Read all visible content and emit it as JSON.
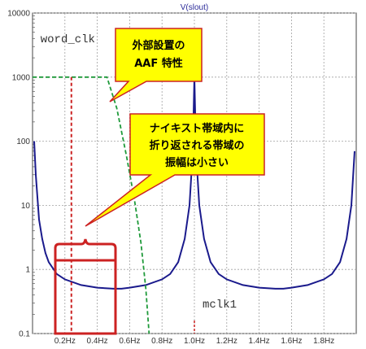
{
  "chart_data": {
    "type": "line",
    "title": "V(slout)",
    "x_scale": "linear",
    "y_scale": "log",
    "xlim": [
      0,
      2.0
    ],
    "ylim": [
      0.1,
      10000
    ],
    "x_ticks": [
      0.2,
      0.4,
      0.6,
      0.8,
      1.0,
      1.2,
      1.4,
      1.6,
      1.8
    ],
    "x_tick_labels": [
      "0.2Hz",
      "0.4Hz",
      "0.6Hz",
      "0.8Hz",
      "1.0Hz",
      "1.2Hz",
      "1.4Hz",
      "1.6Hz",
      "1.8Hz"
    ],
    "y_ticks": [
      0.1,
      1,
      10,
      100,
      1000,
      10000
    ],
    "y_tick_labels": [
      "0.1",
      "1",
      "10",
      "100",
      "1000",
      "10000"
    ],
    "grid": true,
    "series": [
      {
        "color": "#1a1a8c",
        "style": "solid",
        "x": [
          0.01,
          0.02,
          0.04,
          0.06,
          0.08,
          0.1,
          0.15,
          0.2,
          0.3,
          0.4,
          0.5,
          0.55,
          0.6,
          0.7,
          0.8,
          0.85,
          0.9,
          0.94,
          0.97,
          0.99,
          1.0,
          1.01,
          1.03,
          1.06,
          1.1,
          1.15,
          1.2,
          1.3,
          1.4,
          1.5,
          1.55,
          1.6,
          1.7,
          1.8,
          1.85,
          1.9,
          1.94,
          1.97,
          1.99
        ],
        "y": [
          100,
          30,
          6,
          3,
          1.8,
          1.3,
          0.85,
          0.7,
          0.57,
          0.52,
          0.5,
          0.5,
          0.52,
          0.57,
          0.7,
          0.85,
          1.3,
          3,
          10,
          70,
          1000,
          70,
          10,
          3,
          1.3,
          0.85,
          0.7,
          0.57,
          0.52,
          0.5,
          0.5,
          0.52,
          0.57,
          0.7,
          0.85,
          1.3,
          3,
          10,
          70
        ]
      },
      {
        "color": "#1f9a3a",
        "style": "dashed",
        "x": [
          0.0,
          0.42,
          0.46,
          0.52,
          0.58,
          0.63,
          0.67,
          0.7,
          0.72
        ],
        "y": [
          1000,
          1000,
          1000,
          330,
          60,
          12,
          2.6,
          0.5,
          0.1
        ]
      }
    ],
    "markers": [
      {
        "label": "word_clk",
        "x": 0.24,
        "color": "#cc2222"
      },
      {
        "label": "mclk1",
        "x": 1.0,
        "color": "#cc2222"
      }
    ],
    "annotations": [
      {
        "lines": [
          "外部設置の",
          "AAF 特性"
        ]
      },
      {
        "lines": [
          "ナイキスト帯域内に",
          "折り返される帯域の",
          "振幅は小さい"
        ]
      }
    ]
  }
}
